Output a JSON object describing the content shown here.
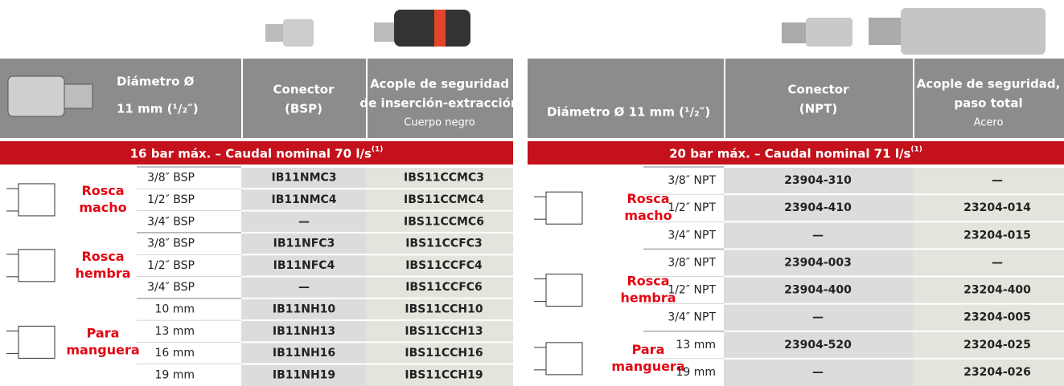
{
  "tables": [
    {
      "header": {
        "diameter_line1": "Diámetro Ø",
        "diameter_line2": "11 mm (¹/₂″)",
        "col2_line1": "Conector",
        "col2_line2": "(BSP)",
        "col3_line1": "Acople de seguridad",
        "col3_line2": "de inserción-extracción",
        "col3_line3": "Cuerpo negro"
      },
      "band": {
        "text": "16 bar máx. – Caudal nominal 70 l/s",
        "note": "(1)"
      },
      "groups": [
        {
          "label": [
            "Rosca",
            "macho"
          ],
          "rows": [
            [
              "3/8″ BSP",
              "IB11NMC3",
              "IBS11CCMC3"
            ],
            [
              "1/2″ BSP",
              "IB11NMC4",
              "IBS11CCMC4"
            ],
            [
              "3/4″ BSP",
              "—",
              "IBS11CCMC6"
            ]
          ]
        },
        {
          "label": [
            "Rosca",
            "hembra"
          ],
          "rows": [
            [
              "3/8″ BSP",
              "IB11NFC3",
              "IBS11CCFC3"
            ],
            [
              "1/2″ BSP",
              "IB11NFC4",
              "IBS11CCFC4"
            ],
            [
              "3/4″ BSP",
              "—",
              "IBS11CCFC6"
            ]
          ]
        },
        {
          "label": [
            "Para",
            "manguera"
          ],
          "rows": [
            [
              "10 mm",
              "IB11NH10",
              "IBS11CCH10"
            ],
            [
              "13 mm",
              "IB11NH13",
              "IBS11CCH13"
            ],
            [
              "16 mm",
              "IB11NH16",
              "IBS11CCH16"
            ],
            [
              "19 mm",
              "IB11NH19",
              "IBS11CCH19"
            ]
          ]
        }
      ]
    },
    {
      "header": {
        "diameter_line1": "Diámetro Ø 11 mm (¹/₂″)",
        "col2_line1": "Conector",
        "col2_line2": "(NPT)",
        "col3_line1": "Acople de seguridad,",
        "col3_line2": "paso total",
        "col3_line3": "Acero"
      },
      "band": {
        "text": "20 bar máx. – Caudal nominal 71 l/s",
        "note": "(1)"
      },
      "groups": [
        {
          "label": [
            "Rosca",
            "macho"
          ],
          "rows": [
            [
              "3/8″ NPT",
              "23904-310",
              "—"
            ],
            [
              "1/2″ NPT",
              "23904-410",
              "23204-014"
            ],
            [
              "3/4″ NPT",
              "—",
              "23204-015"
            ]
          ]
        },
        {
          "label": [
            "Rosca",
            "hembra"
          ],
          "rows": [
            [
              "3/8″ NPT",
              "23904-003",
              "—"
            ],
            [
              "1/2″ NPT",
              "23904-400",
              "23204-400"
            ],
            [
              "3/4″ NPT",
              "—",
              "23204-005"
            ]
          ]
        },
        {
          "label": [
            "Para",
            "manguera"
          ],
          "rows": [
            [
              "13 mm",
              "23904-520",
              "23204-025"
            ],
            [
              "19 mm",
              "—",
              "23204-026"
            ]
          ]
        }
      ]
    }
  ]
}
